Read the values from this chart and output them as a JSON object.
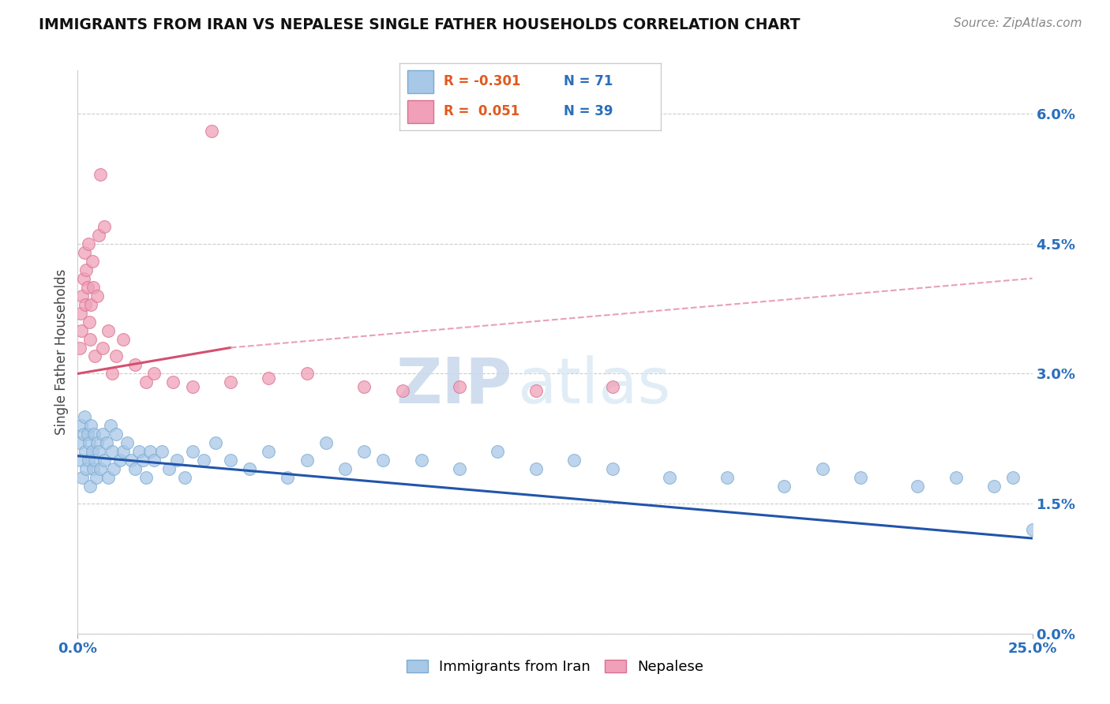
{
  "title": "IMMIGRANTS FROM IRAN VS NEPALESE SINGLE FATHER HOUSEHOLDS CORRELATION CHART",
  "source": "Source: ZipAtlas.com",
  "ylabel": "Single Father Households",
  "right_yticks": [
    "0.0%",
    "1.5%",
    "3.0%",
    "4.5%",
    "6.0%"
  ],
  "right_ytick_vals": [
    0.0,
    1.5,
    3.0,
    4.5,
    6.0
  ],
  "xlim": [
    0.0,
    25.0
  ],
  "ylim": [
    0.0,
    6.5
  ],
  "watermark": "ZIPatlas",
  "blue_color": "#a8c8e8",
  "blue_edge_color": "#7aaad0",
  "blue_line_color": "#2255aa",
  "pink_color": "#f0a0b8",
  "pink_edge_color": "#d87090",
  "pink_line_color": "#d45070",
  "pink_dash_color": "#e8a0b8",
  "iran_x": [
    0.05,
    0.08,
    0.1,
    0.12,
    0.15,
    0.18,
    0.2,
    0.22,
    0.25,
    0.28,
    0.3,
    0.32,
    0.35,
    0.38,
    0.4,
    0.42,
    0.45,
    0.48,
    0.5,
    0.55,
    0.6,
    0.65,
    0.7,
    0.75,
    0.8,
    0.85,
    0.9,
    0.95,
    1.0,
    1.1,
    1.2,
    1.3,
    1.4,
    1.5,
    1.6,
    1.7,
    1.8,
    1.9,
    2.0,
    2.2,
    2.4,
    2.6,
    2.8,
    3.0,
    3.3,
    3.6,
    4.0,
    4.5,
    5.0,
    5.5,
    6.0,
    6.5,
    7.0,
    7.5,
    8.0,
    9.0,
    10.0,
    11.0,
    12.0,
    13.0,
    14.0,
    15.5,
    17.0,
    18.5,
    19.5,
    20.5,
    22.0,
    23.0,
    24.0,
    24.5,
    25.0
  ],
  "iran_y": [
    2.2,
    2.0,
    2.4,
    1.8,
    2.3,
    2.5,
    2.1,
    1.9,
    2.3,
    2.0,
    2.2,
    1.7,
    2.4,
    2.1,
    1.9,
    2.3,
    2.0,
    1.8,
    2.2,
    2.1,
    1.9,
    2.3,
    2.0,
    2.2,
    1.8,
    2.4,
    2.1,
    1.9,
    2.3,
    2.0,
    2.1,
    2.2,
    2.0,
    1.9,
    2.1,
    2.0,
    1.8,
    2.1,
    2.0,
    2.1,
    1.9,
    2.0,
    1.8,
    2.1,
    2.0,
    2.2,
    2.0,
    1.9,
    2.1,
    1.8,
    2.0,
    2.2,
    1.9,
    2.1,
    2.0,
    2.0,
    1.9,
    2.1,
    1.9,
    2.0,
    1.9,
    1.8,
    1.8,
    1.7,
    1.9,
    1.8,
    1.7,
    1.8,
    1.7,
    1.8,
    1.2
  ],
  "nepal_x": [
    0.05,
    0.08,
    0.1,
    0.12,
    0.15,
    0.18,
    0.2,
    0.22,
    0.25,
    0.28,
    0.3,
    0.32,
    0.35,
    0.38,
    0.4,
    0.45,
    0.5,
    0.55,
    0.6,
    0.65,
    0.7,
    0.8,
    0.9,
    1.0,
    1.2,
    1.5,
    1.8,
    2.0,
    2.5,
    3.0,
    3.5,
    4.0,
    5.0,
    6.0,
    7.5,
    8.5,
    10.0,
    12.0,
    14.0
  ],
  "nepal_y": [
    3.3,
    3.7,
    3.5,
    3.9,
    4.1,
    4.4,
    3.8,
    4.2,
    4.0,
    4.5,
    3.6,
    3.4,
    3.8,
    4.3,
    4.0,
    3.2,
    3.9,
    4.6,
    5.3,
    3.3,
    4.7,
    3.5,
    3.0,
    3.2,
    3.4,
    3.1,
    2.9,
    3.0,
    2.9,
    2.85,
    5.8,
    2.9,
    2.95,
    3.0,
    2.85,
    2.8,
    2.85,
    2.8,
    2.85
  ],
  "iran_line_x0": 0.0,
  "iran_line_y0": 2.05,
  "iran_line_x1": 25.0,
  "iran_line_y1": 1.1,
  "nepal_solid_x0": 0.0,
  "nepal_solid_y0": 3.0,
  "nepal_solid_x1": 4.0,
  "nepal_solid_y1": 3.3,
  "nepal_dash_x0": 4.0,
  "nepal_dash_y0": 3.3,
  "nepal_dash_x1": 25.0,
  "nepal_dash_y1": 4.1
}
